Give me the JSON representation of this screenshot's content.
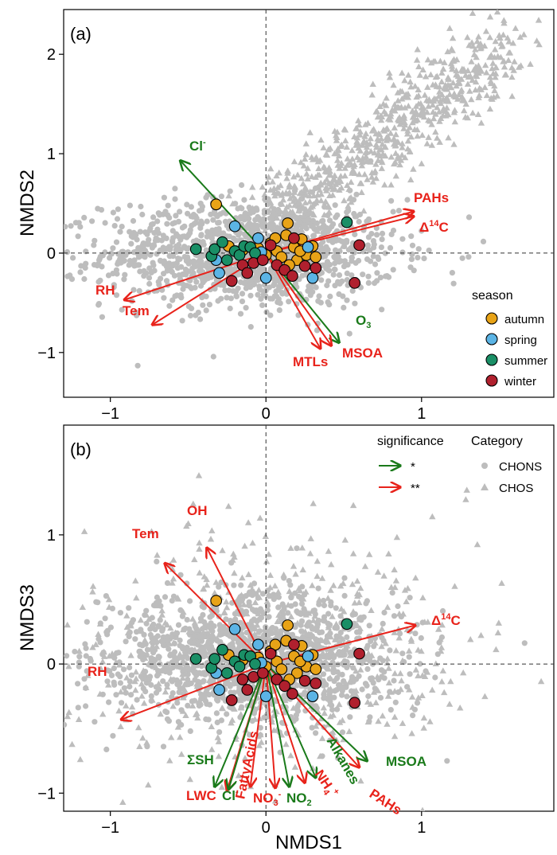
{
  "chart_data": [
    {
      "type": "scatter",
      "panel_label": "(a)",
      "xlabel": "",
      "ylabel": "NMDS2",
      "xlim": [
        -1.3,
        1.85
      ],
      "ylim": [
        -1.45,
        2.45
      ],
      "xticks": [
        "-1",
        "0",
        "1"
      ],
      "yticks": [
        "-1",
        "0",
        "1",
        "2"
      ],
      "reference_lines": {
        "x": 0,
        "y": 0,
        "style": "dashed"
      },
      "background_series": [
        {
          "name": "CHONS",
          "marker": "circle",
          "color": "#bdbdbd",
          "cloud": {
            "center": [
              -0.1,
              0.0
            ],
            "spread": [
              0.85,
              0.45
            ]
          }
        },
        {
          "name": "CHOS",
          "marker": "triangle",
          "color": "#bdbdbd",
          "ridge": {
            "from": [
              0.0,
              0.3
            ],
            "to": [
              1.55,
              2.1
            ]
          }
        }
      ],
      "series": [
        {
          "name": "autumn",
          "color": "#e8a317",
          "points": [
            [
              -0.32,
              0.49
            ],
            [
              -0.24,
              0.07
            ],
            [
              -0.15,
              0.03
            ],
            [
              -0.05,
              0.05
            ],
            [
              0.03,
              0.1
            ],
            [
              0.07,
              0.02
            ],
            [
              0.1,
              -0.04
            ],
            [
              0.13,
              0.18
            ],
            [
              0.14,
              0.3
            ],
            [
              0.18,
              0.06
            ],
            [
              0.2,
              -0.07
            ],
            [
              0.23,
              0.14
            ],
            [
              0.26,
              -0.02
            ],
            [
              0.3,
              0.07
            ],
            [
              0.32,
              -0.04
            ],
            [
              0.22,
              0.02
            ],
            [
              0.06,
              0.15
            ],
            [
              0.0,
              -0.02
            ],
            [
              0.15,
              -0.12
            ]
          ]
        },
        {
          "name": "spring",
          "color": "#5bb4e5",
          "points": [
            [
              -0.32,
              -0.07
            ],
            [
              -0.3,
              -0.2
            ],
            [
              -0.2,
              0.27
            ],
            [
              -0.05,
              0.15
            ],
            [
              -0.03,
              0.01
            ],
            [
              0.0,
              -0.25
            ],
            [
              0.3,
              -0.25
            ],
            [
              0.27,
              0.06
            ]
          ]
        },
        {
          "name": "summer",
          "color": "#1a8f66",
          "points": [
            [
              -0.45,
              0.04
            ],
            [
              -0.35,
              -0.03
            ],
            [
              -0.33,
              0.04
            ],
            [
              -0.28,
              0.11
            ],
            [
              -0.25,
              -0.07
            ],
            [
              -0.2,
              0.02
            ],
            [
              -0.17,
              -0.02
            ],
            [
              -0.14,
              0.07
            ],
            [
              -0.1,
              0.06
            ],
            [
              -0.07,
              0.0
            ],
            [
              0.52,
              0.31
            ]
          ]
        },
        {
          "name": "winter",
          "color": "#b0202e",
          "points": [
            [
              -0.22,
              -0.28
            ],
            [
              -0.15,
              -0.12
            ],
            [
              -0.12,
              -0.2
            ],
            [
              -0.08,
              -0.1
            ],
            [
              -0.02,
              -0.07
            ],
            [
              0.03,
              0.08
            ],
            [
              0.07,
              -0.12
            ],
            [
              0.12,
              -0.17
            ],
            [
              0.17,
              -0.23
            ],
            [
              0.18,
              0.15
            ],
            [
              0.25,
              -0.13
            ],
            [
              0.32,
              -0.15
            ],
            [
              0.6,
              0.08
            ],
            [
              0.57,
              -0.3
            ]
          ]
        }
      ],
      "vectors": [
        {
          "label": "Cl",
          "label_sup": "-",
          "significance": "*",
          "end": [
            -0.55,
            0.93
          ]
        },
        {
          "label": "PAHs",
          "significance": "**",
          "end": [
            0.95,
            0.42
          ]
        },
        {
          "label": "Δ",
          "label_sup": "14",
          "label_tail": "C",
          "significance": "**",
          "end": [
            0.95,
            0.37
          ]
        },
        {
          "label": "RH",
          "significance": "**",
          "end": [
            -0.91,
            -0.47
          ]
        },
        {
          "label": "Tem",
          "significance": "**",
          "end": [
            -0.73,
            -0.72
          ]
        },
        {
          "label": "O",
          "label_sub": "3",
          "significance": "*",
          "end": [
            0.47,
            -0.9
          ]
        },
        {
          "label": "MSOA",
          "significance": "**",
          "end": [
            0.42,
            -0.93
          ]
        },
        {
          "label": "MTLs",
          "significance": "**",
          "end": [
            0.35,
            -0.96
          ]
        }
      ],
      "legend": {
        "title": "season",
        "entries": [
          "autumn",
          "spring",
          "summer",
          "winter"
        ],
        "placement": "bottom-right"
      }
    },
    {
      "type": "scatter",
      "panel_label": "(b)",
      "xlabel": "NMDS1",
      "ylabel": "NMDS3",
      "xlim": [
        -1.3,
        1.85
      ],
      "ylim": [
        -1.14,
        1.85
      ],
      "xticks": [
        "-1",
        "0",
        "1"
      ],
      "yticks": [
        "-1",
        "0",
        "1"
      ],
      "reference_lines": {
        "x": 0,
        "y": 0,
        "style": "dashed"
      },
      "background_series": [
        {
          "name": "CHONS",
          "marker": "circle",
          "color": "#bdbdbd",
          "cloud": {
            "center": [
              -0.1,
              0.05
            ],
            "spread": [
              0.85,
              0.4
            ]
          }
        },
        {
          "name": "CHOS",
          "marker": "triangle",
          "color": "#bdbdbd",
          "cloud": {
            "center": [
              0.0,
              0.1
            ],
            "spread": [
              1.1,
              0.75
            ]
          }
        }
      ],
      "series": [
        {
          "name": "autumn",
          "color": "#e8a317",
          "points": [
            [
              -0.32,
              0.49
            ],
            [
              -0.24,
              0.07
            ],
            [
              -0.15,
              0.03
            ],
            [
              -0.05,
              0.05
            ],
            [
              0.03,
              0.1
            ],
            [
              0.07,
              0.02
            ],
            [
              0.1,
              -0.04
            ],
            [
              0.13,
              0.18
            ],
            [
              0.14,
              0.3
            ],
            [
              0.18,
              0.06
            ],
            [
              0.2,
              -0.07
            ],
            [
              0.23,
              0.14
            ],
            [
              0.26,
              -0.02
            ],
            [
              0.3,
              0.07
            ],
            [
              0.32,
              -0.04
            ],
            [
              0.22,
              0.02
            ],
            [
              0.06,
              0.15
            ],
            [
              0.0,
              -0.02
            ],
            [
              0.15,
              -0.12
            ]
          ]
        },
        {
          "name": "spring",
          "color": "#5bb4e5",
          "points": [
            [
              -0.32,
              -0.07
            ],
            [
              -0.3,
              -0.2
            ],
            [
              -0.2,
              0.27
            ],
            [
              -0.05,
              0.15
            ],
            [
              -0.03,
              0.01
            ],
            [
              0.0,
              -0.25
            ],
            [
              0.3,
              -0.25
            ],
            [
              0.27,
              0.06
            ]
          ]
        },
        {
          "name": "summer",
          "color": "#1a8f66",
          "points": [
            [
              -0.45,
              0.04
            ],
            [
              -0.35,
              -0.03
            ],
            [
              -0.33,
              0.04
            ],
            [
              -0.28,
              0.11
            ],
            [
              -0.25,
              -0.07
            ],
            [
              -0.2,
              0.02
            ],
            [
              -0.17,
              -0.02
            ],
            [
              -0.14,
              0.07
            ],
            [
              -0.1,
              0.06
            ],
            [
              -0.07,
              0.0
            ],
            [
              0.52,
              0.31
            ]
          ]
        },
        {
          "name": "winter",
          "color": "#b0202e",
          "points": [
            [
              -0.22,
              -0.28
            ],
            [
              -0.15,
              -0.12
            ],
            [
              -0.12,
              -0.2
            ],
            [
              -0.08,
              -0.1
            ],
            [
              -0.02,
              -0.07
            ],
            [
              0.03,
              0.08
            ],
            [
              0.07,
              -0.12
            ],
            [
              0.12,
              -0.17
            ],
            [
              0.17,
              -0.23
            ],
            [
              0.18,
              0.15
            ],
            [
              0.25,
              -0.13
            ],
            [
              0.32,
              -0.15
            ],
            [
              0.6,
              0.08
            ],
            [
              0.57,
              -0.3
            ]
          ]
        }
      ],
      "vectors": [
        {
          "label": "OH",
          "significance": "**",
          "end": [
            -0.38,
            0.9
          ]
        },
        {
          "label": "Tem",
          "significance": "**",
          "end": [
            -0.65,
            0.78
          ]
        },
        {
          "label": "Δ",
          "label_sup": "14",
          "label_tail": "C",
          "significance": "**",
          "end": [
            0.96,
            0.3
          ]
        },
        {
          "label": "RH",
          "significance": "**",
          "end": [
            -0.93,
            -0.43
          ]
        },
        {
          "label": "ΣSH",
          "significance": "*",
          "end": [
            -0.33,
            -0.95
          ]
        },
        {
          "label": "LWC",
          "significance": "**",
          "end": [
            -0.25,
            -0.98
          ]
        },
        {
          "label": "Cl",
          "label_sup": "-",
          "significance": "*",
          "end": [
            -0.24,
            -0.97
          ]
        },
        {
          "label": "FattyAcids",
          "significance": "**",
          "end": [
            -0.1,
            -0.95
          ]
        },
        {
          "label": "NO",
          "label_sub": "3",
          "label_sup": "-",
          "significance": "**",
          "end": [
            0.06,
            -0.96
          ]
        },
        {
          "label": "NO",
          "label_sub": "2",
          "significance": "*",
          "end": [
            0.15,
            -0.95
          ]
        },
        {
          "label": "NH",
          "label_sub": "4",
          "label_sup": "+",
          "significance": "**",
          "end": [
            0.25,
            -0.92
          ]
        },
        {
          "label": "Alkanes",
          "significance": "*",
          "end": [
            0.32,
            -0.88
          ]
        },
        {
          "label": "PAHs",
          "significance": "**",
          "end": [
            0.6,
            -0.8
          ]
        },
        {
          "label": "MSOA",
          "significance": "*",
          "end": [
            0.65,
            -0.75
          ]
        }
      ],
      "legend": [
        {
          "title": "significance",
          "entries": [
            {
              "label": "*",
              "color": "#1a7a1a"
            },
            {
              "label": "**",
              "color": "#e8231b"
            }
          ],
          "placement": "top-right"
        },
        {
          "title": "Category",
          "entries": [
            {
              "label": "CHONS",
              "marker": "circle"
            },
            {
              "label": "CHOS",
              "marker": "triangle"
            }
          ],
          "placement": "top-right"
        }
      ]
    }
  ],
  "colors": {
    "sig1": "#1a7a1a",
    "sig2": "#e8231b",
    "background_points": "#bdbdbd",
    "axis": "#000000"
  }
}
